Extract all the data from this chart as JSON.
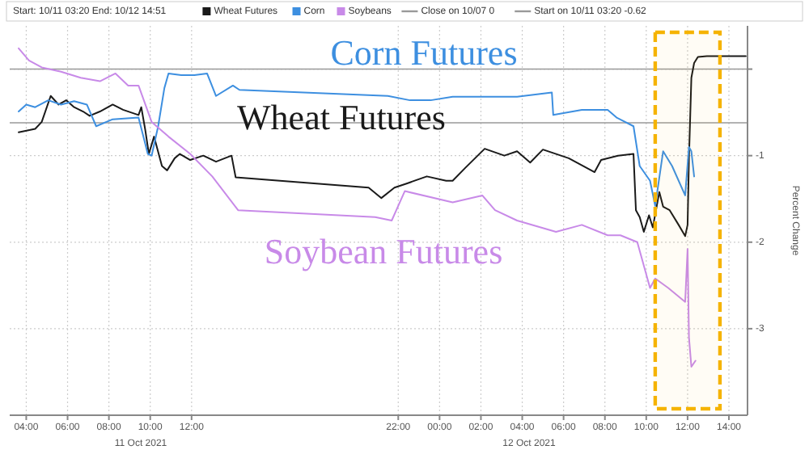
{
  "chart_data": {
    "type": "line",
    "subtitle": "Start: 10/11 03:20 End: 10/12 14:51",
    "ylabel": "Percent Change",
    "xlim": [
      "2021-10-11T03:12",
      "2021-10-12T14:54"
    ],
    "ylim": [
      -4,
      0.5
    ],
    "xticks": [
      {
        "value": "2021-10-11T04:00",
        "label": "04:00"
      },
      {
        "value": "2021-10-11T06:00",
        "label": "06:00"
      },
      {
        "value": "2021-10-11T08:00",
        "label": "08:00"
      },
      {
        "value": "2021-10-11T10:00",
        "label": "10:00"
      },
      {
        "value": "2021-10-11T12:00",
        "label": "12:00"
      },
      {
        "value": "2021-10-11T22:00",
        "label": "22:00"
      },
      {
        "value": "2021-10-12T00:00",
        "label": "00:00"
      },
      {
        "value": "2021-10-12T02:00",
        "label": "02:00"
      },
      {
        "value": "2021-10-12T04:00",
        "label": "04:00"
      },
      {
        "value": "2021-10-12T06:00",
        "label": "06:00"
      },
      {
        "value": "2021-10-12T08:00",
        "label": "08:00"
      },
      {
        "value": "2021-10-12T10:00",
        "label": "10:00"
      },
      {
        "value": "2021-10-12T12:00",
        "label": "12:00"
      },
      {
        "value": "2021-10-12T14:00",
        "label": "14:00"
      }
    ],
    "yticks": [
      {
        "value": 0,
        "label": null
      },
      -1,
      -2,
      -3
    ],
    "grid": true,
    "legend": "top",
    "series": [
      {
        "name": "Wheat Futures",
        "color": "#1a1a1a",
        "x": [
          "2021-10-11T03:38",
          "2021-10-11T04:26",
          "2021-10-11T04:45",
          "2021-10-11T05:11",
          "2021-10-11T05:34",
          "2021-10-11T05:56",
          "2021-10-11T06:19",
          "2021-10-11T06:45",
          "2021-10-11T07:04",
          "2021-10-11T07:34",
          "2021-10-11T08:11",
          "2021-10-11T08:41",
          "2021-10-11T09:26",
          "2021-10-11T09:34",
          "2021-10-11T09:45",
          "2021-10-11T09:56",
          "2021-10-11T10:11",
          "2021-10-11T10:34",
          "2021-10-11T10:49",
          "2021-10-11T11:11",
          "2021-10-11T11:26",
          "2021-10-11T11:56",
          "2021-10-11T12:34",
          "2021-10-11T13:11",
          "2021-10-11T13:56",
          "2021-10-11T14:08",
          "2021-10-11T20:34",
          "2021-10-11T21:11",
          "2021-10-11T21:49",
          "2021-10-11T22:26",
          "2021-10-11T23:23",
          "2021-10-12T00:19",
          "2021-10-12T00:38",
          "2021-10-12T01:15",
          "2021-10-12T02:11",
          "2021-10-12T03:08",
          "2021-10-12T03:45",
          "2021-10-12T04:23",
          "2021-10-12T05:00",
          "2021-10-12T06:15",
          "2021-10-12T07:30",
          "2021-10-12T07:49",
          "2021-10-12T08:38",
          "2021-10-12T09:23",
          "2021-10-12T09:30",
          "2021-10-12T09:41",
          "2021-10-12T09:53",
          "2021-10-12T10:08",
          "2021-10-12T10:19",
          "2021-10-12T10:38",
          "2021-10-12T10:49",
          "2021-10-12T11:08",
          "2021-10-12T11:34",
          "2021-10-12T11:53",
          "2021-10-12T12:00",
          "2021-10-12T12:04",
          "2021-10-12T12:11",
          "2021-10-12T12:19",
          "2021-10-12T12:30",
          "2021-10-12T12:56",
          "2021-10-12T14:49"
        ],
        "values": [
          -0.73,
          -0.69,
          -0.61,
          -0.31,
          -0.41,
          -0.36,
          -0.44,
          -0.49,
          -0.54,
          -0.49,
          -0.41,
          -0.47,
          -0.53,
          -0.44,
          -0.69,
          -0.98,
          -0.78,
          -1.12,
          -1.17,
          -1.03,
          -0.98,
          -1.05,
          -1.0,
          -1.07,
          -1.0,
          -1.25,
          -1.37,
          -1.49,
          -1.37,
          -1.32,
          -1.24,
          -1.29,
          -1.29,
          -1.14,
          -0.92,
          -1.0,
          -0.95,
          -1.08,
          -0.93,
          -1.03,
          -1.19,
          -1.05,
          -1.0,
          -0.98,
          -1.63,
          -1.71,
          -1.88,
          -1.69,
          -1.83,
          -1.42,
          -1.59,
          -1.63,
          -1.8,
          -1.93,
          -1.8,
          -1.03,
          -0.1,
          0.07,
          0.14,
          0.15,
          0.15
        ]
      },
      {
        "name": "Corn",
        "color": "#3d8fe0",
        "x": [
          "2021-10-11T03:38",
          "2021-10-11T04:00",
          "2021-10-11T04:26",
          "2021-10-11T05:04",
          "2021-10-11T05:41",
          "2021-10-11T06:19",
          "2021-10-11T06:56",
          "2021-10-11T07:23",
          "2021-10-11T08:11",
          "2021-10-11T09:26",
          "2021-10-11T09:53",
          "2021-10-11T10:04",
          "2021-10-11T10:23",
          "2021-10-11T10:41",
          "2021-10-11T10:53",
          "2021-10-11T11:30",
          "2021-10-11T12:08",
          "2021-10-11T12:45",
          "2021-10-11T13:11",
          "2021-10-11T14:00",
          "2021-10-11T14:19",
          "2021-10-11T21:30",
          "2021-10-11T22:34",
          "2021-10-11T23:34",
          "2021-10-12T00:38",
          "2021-10-12T03:45",
          "2021-10-12T05:26",
          "2021-10-12T05:30",
          "2021-10-12T06:53",
          "2021-10-12T08:08",
          "2021-10-12T08:34",
          "2021-10-12T09:23",
          "2021-10-12T09:41",
          "2021-10-12T10:11",
          "2021-10-12T10:26",
          "2021-10-12T10:49",
          "2021-10-12T11:15",
          "2021-10-12T11:53",
          "2021-10-12T12:04",
          "2021-10-12T12:11",
          "2021-10-12T12:19"
        ],
        "values": [
          -0.49,
          -0.41,
          -0.44,
          -0.36,
          -0.41,
          -0.37,
          -0.41,
          -0.66,
          -0.58,
          -0.56,
          -0.98,
          -1.0,
          -0.66,
          -0.22,
          -0.05,
          -0.07,
          -0.07,
          -0.05,
          -0.31,
          -0.19,
          -0.24,
          -0.31,
          -0.36,
          -0.36,
          -0.32,
          -0.32,
          -0.27,
          -0.53,
          -0.47,
          -0.47,
          -0.56,
          -0.66,
          -1.12,
          -1.29,
          -1.58,
          -0.95,
          -1.12,
          -1.46,
          -0.9,
          -0.95,
          -1.24
        ]
      },
      {
        "name": "Soybeans",
        "color": "#c88ae8",
        "x": [
          "2021-10-11T03:38",
          "2021-10-11T04:08",
          "2021-10-11T04:45",
          "2021-10-11T05:41",
          "2021-10-11T06:38",
          "2021-10-11T07:34",
          "2021-10-11T08:19",
          "2021-10-11T08:56",
          "2021-10-11T09:26",
          "2021-10-11T10:04",
          "2021-10-11T10:53",
          "2021-10-11T11:56",
          "2021-10-11T13:00",
          "2021-10-11T14:15",
          "2021-10-11T20:53",
          "2021-10-11T21:41",
          "2021-10-11T22:19",
          "2021-10-12T00:38",
          "2021-10-12T02:04",
          "2021-10-12T02:41",
          "2021-10-12T03:45",
          "2021-10-12T05:38",
          "2021-10-12T06:53",
          "2021-10-12T08:08",
          "2021-10-12T08:45",
          "2021-10-12T09:34",
          "2021-10-12T10:11",
          "2021-10-12T10:26",
          "2021-10-12T11:04",
          "2021-10-12T11:53",
          "2021-10-12T12:00",
          "2021-10-12T12:04",
          "2021-10-12T12:11",
          "2021-10-12T12:23"
        ],
        "values": [
          0.24,
          0.1,
          0.02,
          -0.03,
          -0.1,
          -0.14,
          -0.05,
          -0.19,
          -0.19,
          -0.61,
          -0.78,
          -0.98,
          -1.24,
          -1.63,
          -1.71,
          -1.75,
          -1.41,
          -1.54,
          -1.46,
          -1.63,
          -1.75,
          -1.88,
          -1.8,
          -1.92,
          -1.92,
          -2.0,
          -2.53,
          -2.42,
          -2.53,
          -2.69,
          -2.08,
          -3.1,
          -3.44,
          -3.37
        ]
      }
    ],
    "ref_lines": [
      {
        "axis": "y",
        "value": 0,
        "label": "Close on 10/07 0"
      },
      {
        "axis": "y",
        "value": -0.62,
        "label": "Start on 10/11 03:20 -0.62"
      }
    ],
    "bands": [
      {
        "axis": "x",
        "from": "2021-10-12T10:26",
        "to": "2021-10-12T13:34",
        "color": "#f5b300"
      }
    ],
    "annotations": [
      "Wheat Futures",
      "Corn Futures",
      "Soybean Futures",
      "11 Oct 2021",
      "12 Oct 2021"
    ]
  }
}
